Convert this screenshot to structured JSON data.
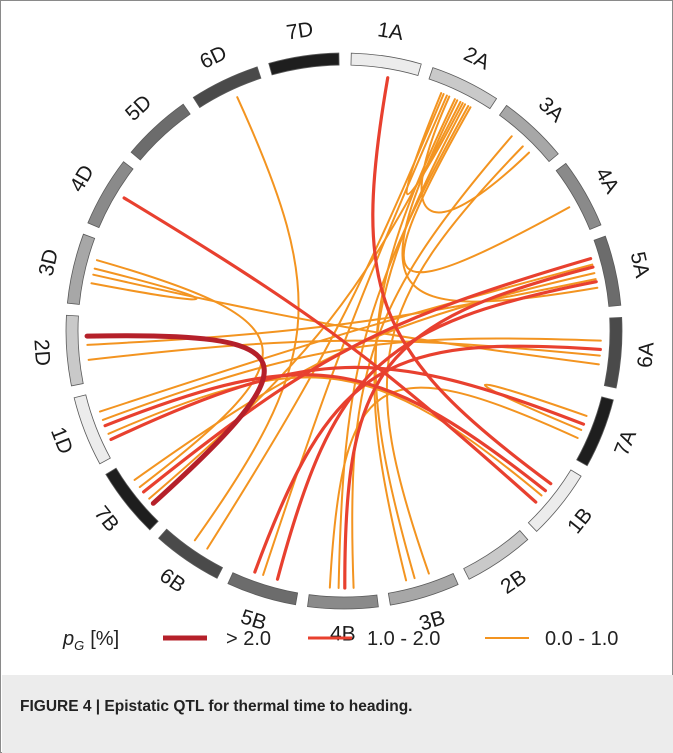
{
  "figure": {
    "caption": "FIGURE 4 | Epistatic QTL for thermal time to heading.",
    "chromosomes": [
      {
        "label": "1A",
        "shade": "#ececec"
      },
      {
        "label": "2A",
        "shade": "#c9c9c9"
      },
      {
        "label": "3A",
        "shade": "#a7a7a7"
      },
      {
        "label": "4A",
        "shade": "#8a8a8a"
      },
      {
        "label": "5A",
        "shade": "#6c6c6c"
      },
      {
        "label": "6A",
        "shade": "#4a4a4a"
      },
      {
        "label": "7A",
        "shade": "#1e1e1e"
      },
      {
        "label": "1B",
        "shade": "#ececec"
      },
      {
        "label": "2B",
        "shade": "#c9c9c9"
      },
      {
        "label": "3B",
        "shade": "#a7a7a7"
      },
      {
        "label": "4B",
        "shade": "#8a8a8a"
      },
      {
        "label": "5B",
        "shade": "#6c6c6c"
      },
      {
        "label": "6B",
        "shade": "#4a4a4a"
      },
      {
        "label": "7B",
        "shade": "#1e1e1e"
      },
      {
        "label": "1D",
        "shade": "#ececec"
      },
      {
        "label": "2D",
        "shade": "#c9c9c9"
      },
      {
        "label": "3D",
        "shade": "#a7a7a7"
      },
      {
        "label": "4D",
        "shade": "#8a8a8a"
      },
      {
        "label": "5D",
        "shade": "#6c6c6c"
      },
      {
        "label": "6D",
        "shade": "#4a4a4a"
      },
      {
        "label": "7D",
        "shade": "#1e1e1e"
      }
    ],
    "legend": {
      "symbol": "p",
      "subscript": "G",
      "unit": "[%]",
      "items": [
        {
          "label": "> 2.0",
          "color": "#b5202a",
          "class": "high"
        },
        {
          "label": "1.0 - 2.0",
          "color": "#e8402f",
          "class": "mid"
        },
        {
          "label": "0.0 - 1.0",
          "color": "#f39420",
          "class": "low"
        }
      ]
    },
    "links": [
      {
        "from": "2D",
        "to": "7B",
        "class": "high"
      },
      {
        "from": "1A",
        "to": "1B",
        "class": "mid"
      },
      {
        "from": "4D",
        "to": "1B",
        "class": "mid"
      },
      {
        "from": "1D",
        "to": "1B",
        "class": "mid"
      },
      {
        "from": "1D",
        "to": "7A",
        "class": "mid"
      },
      {
        "from": "7B",
        "to": "5A",
        "class": "mid"
      },
      {
        "from": "5B",
        "to": "5A",
        "class": "mid"
      },
      {
        "from": "4B",
        "to": "5A",
        "class": "mid"
      },
      {
        "from": "5B",
        "to": "6A",
        "class": "mid"
      },
      {
        "from": "6D",
        "to": "6B",
        "class": "low"
      },
      {
        "from": "3D",
        "to": "3D",
        "class": "low"
      },
      {
        "from": "3D",
        "to": "7B",
        "class": "low"
      },
      {
        "from": "2D",
        "to": "5A",
        "class": "low"
      },
      {
        "from": "2D",
        "to": "6A",
        "class": "low"
      },
      {
        "from": "1D",
        "to": "6A",
        "class": "low"
      },
      {
        "from": "1D",
        "to": "1B",
        "class": "low"
      },
      {
        "from": "1D",
        "to": "5A",
        "class": "low"
      },
      {
        "from": "2A",
        "to": "7B",
        "class": "low"
      },
      {
        "from": "2A",
        "to": "5B",
        "class": "low"
      },
      {
        "from": "2A",
        "to": "4B",
        "class": "low"
      },
      {
        "from": "2A",
        "to": "3B",
        "class": "low"
      },
      {
        "from": "3A",
        "to": "3B",
        "class": "low"
      },
      {
        "from": "3A",
        "to": "4B",
        "class": "low"
      },
      {
        "from": "2A",
        "to": "2A",
        "class": "low"
      },
      {
        "from": "2A",
        "to": "3A",
        "class": "low"
      },
      {
        "from": "2A",
        "to": "4A",
        "class": "low"
      },
      {
        "from": "2A",
        "to": "5A",
        "class": "low"
      },
      {
        "from": "2A",
        "to": "6B",
        "class": "low"
      },
      {
        "from": "7A",
        "to": "7A",
        "class": "low"
      },
      {
        "from": "7A",
        "to": "4B",
        "class": "low"
      },
      {
        "from": "7B",
        "to": "5A",
        "class": "low"
      },
      {
        "from": "3B",
        "to": "2A",
        "class": "low"
      },
      {
        "from": "3D",
        "to": "6A",
        "class": "low"
      }
    ]
  }
}
